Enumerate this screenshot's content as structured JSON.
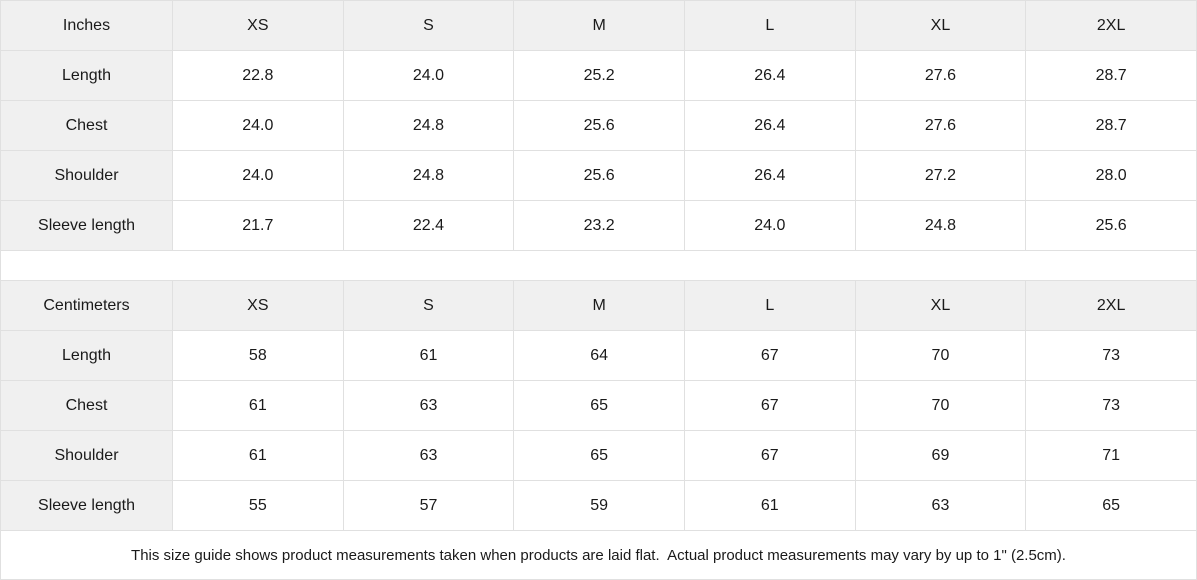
{
  "colors": {
    "header_bg": "#f0f0f0",
    "border": "#e0e0e0",
    "text": "#1a1a1a",
    "cell_bg": "#ffffff"
  },
  "tables": [
    {
      "unit_label": "Inches",
      "sizes": [
        "XS",
        "S",
        "M",
        "L",
        "XL",
        "2XL"
      ],
      "rows": [
        {
          "label": "Length",
          "values": [
            "22.8",
            "24.0",
            "25.2",
            "26.4",
            "27.6",
            "28.7"
          ]
        },
        {
          "label": "Chest",
          "values": [
            "24.0",
            "24.8",
            "25.6",
            "26.4",
            "27.6",
            "28.7"
          ]
        },
        {
          "label": "Shoulder",
          "values": [
            "24.0",
            "24.8",
            "25.6",
            "26.4",
            "27.2",
            "28.0"
          ]
        },
        {
          "label": "Sleeve length",
          "values": [
            "21.7",
            "22.4",
            "23.2",
            "24.0",
            "24.8",
            "25.6"
          ]
        }
      ]
    },
    {
      "unit_label": "Centimeters",
      "sizes": [
        "XS",
        "S",
        "M",
        "L",
        "XL",
        "2XL"
      ],
      "rows": [
        {
          "label": "Length",
          "values": [
            "58",
            "61",
            "64",
            "67",
            "70",
            "73"
          ]
        },
        {
          "label": "Chest",
          "values": [
            "61",
            "63",
            "65",
            "67",
            "70",
            "73"
          ]
        },
        {
          "label": "Shoulder",
          "values": [
            "61",
            "63",
            "65",
            "67",
            "69",
            "71"
          ]
        },
        {
          "label": "Sleeve length",
          "values": [
            "55",
            "57",
            "59",
            "61",
            "63",
            "65"
          ]
        }
      ]
    }
  ],
  "footer_note": "This size guide shows product measurements taken when products are laid flat.  Actual product measurements may vary by up to 1\" (2.5cm)."
}
